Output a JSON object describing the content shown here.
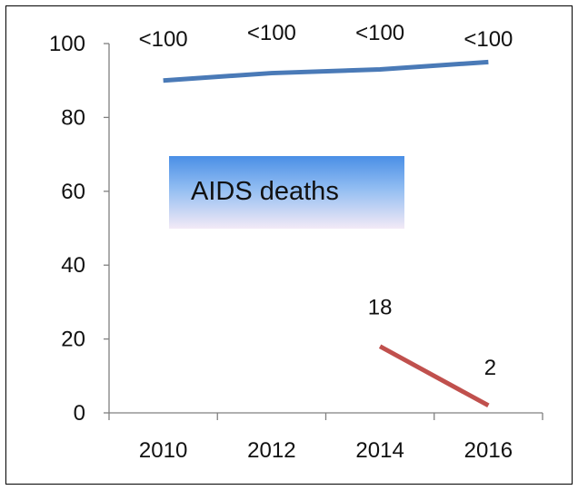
{
  "chart_data": {
    "type": "line",
    "x_ticks": [
      "2010",
      "2012",
      "2014",
      "2016"
    ],
    "y_ticks": [
      "0",
      "20",
      "40",
      "60",
      "80",
      "100"
    ],
    "ylim": [
      0,
      100
    ],
    "grid": false,
    "annotation": "AIDS deaths",
    "series": [
      {
        "color": "#4a7ab7",
        "points": [
          {
            "x": 2010,
            "y": 90
          },
          {
            "x": 2012,
            "y": 92
          },
          {
            "x": 2014,
            "y": 93
          },
          {
            "x": 2016,
            "y": 95
          }
        ],
        "labels": [
          "<100",
          "<100",
          "<100",
          "<100"
        ]
      },
      {
        "color": "#c0504d",
        "points": [
          {
            "x": 2014,
            "y": 18
          },
          {
            "x": 2016,
            "y": 2
          }
        ],
        "labels": [
          "18",
          "2"
        ]
      }
    ]
  }
}
